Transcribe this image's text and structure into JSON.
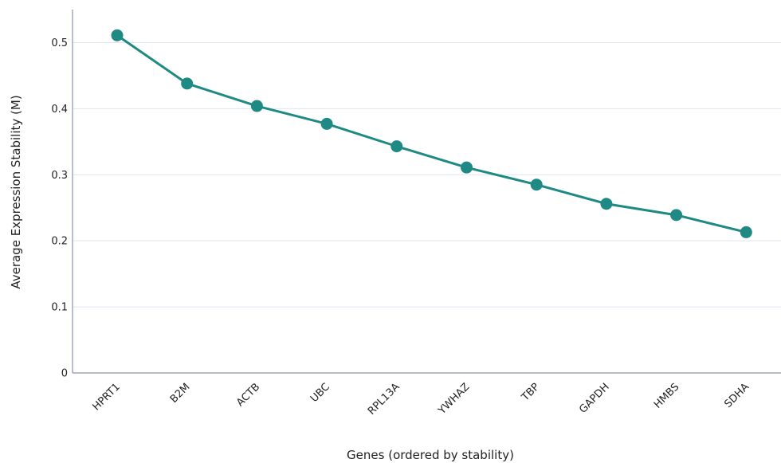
{
  "chart_data": {
    "type": "line",
    "title": "",
    "xlabel": "Genes (ordered by stability)",
    "ylabel": "Average Expression Stability (M)",
    "categories": [
      "HPRT1",
      "B2M",
      "ACTB",
      "UBC",
      "RPL13A",
      "YWHAZ",
      "TBP",
      "GAPDH",
      "HMBS",
      "SDHA"
    ],
    "series": [
      {
        "values": [
          0.511,
          0.438,
          0.404,
          0.377,
          0.343,
          0.311,
          0.285,
          0.256,
          0.239,
          0.213
        ]
      }
    ],
    "ylim": [
      0,
      0.55
    ],
    "yticks": [
      0,
      0.1,
      0.2,
      0.3,
      0.4,
      0.5
    ],
    "ytick_labels": [
      "0",
      "0.1",
      "0.2",
      "0.3",
      "0.4",
      "0.5"
    ],
    "grid": true,
    "color": "#1f8a84"
  }
}
